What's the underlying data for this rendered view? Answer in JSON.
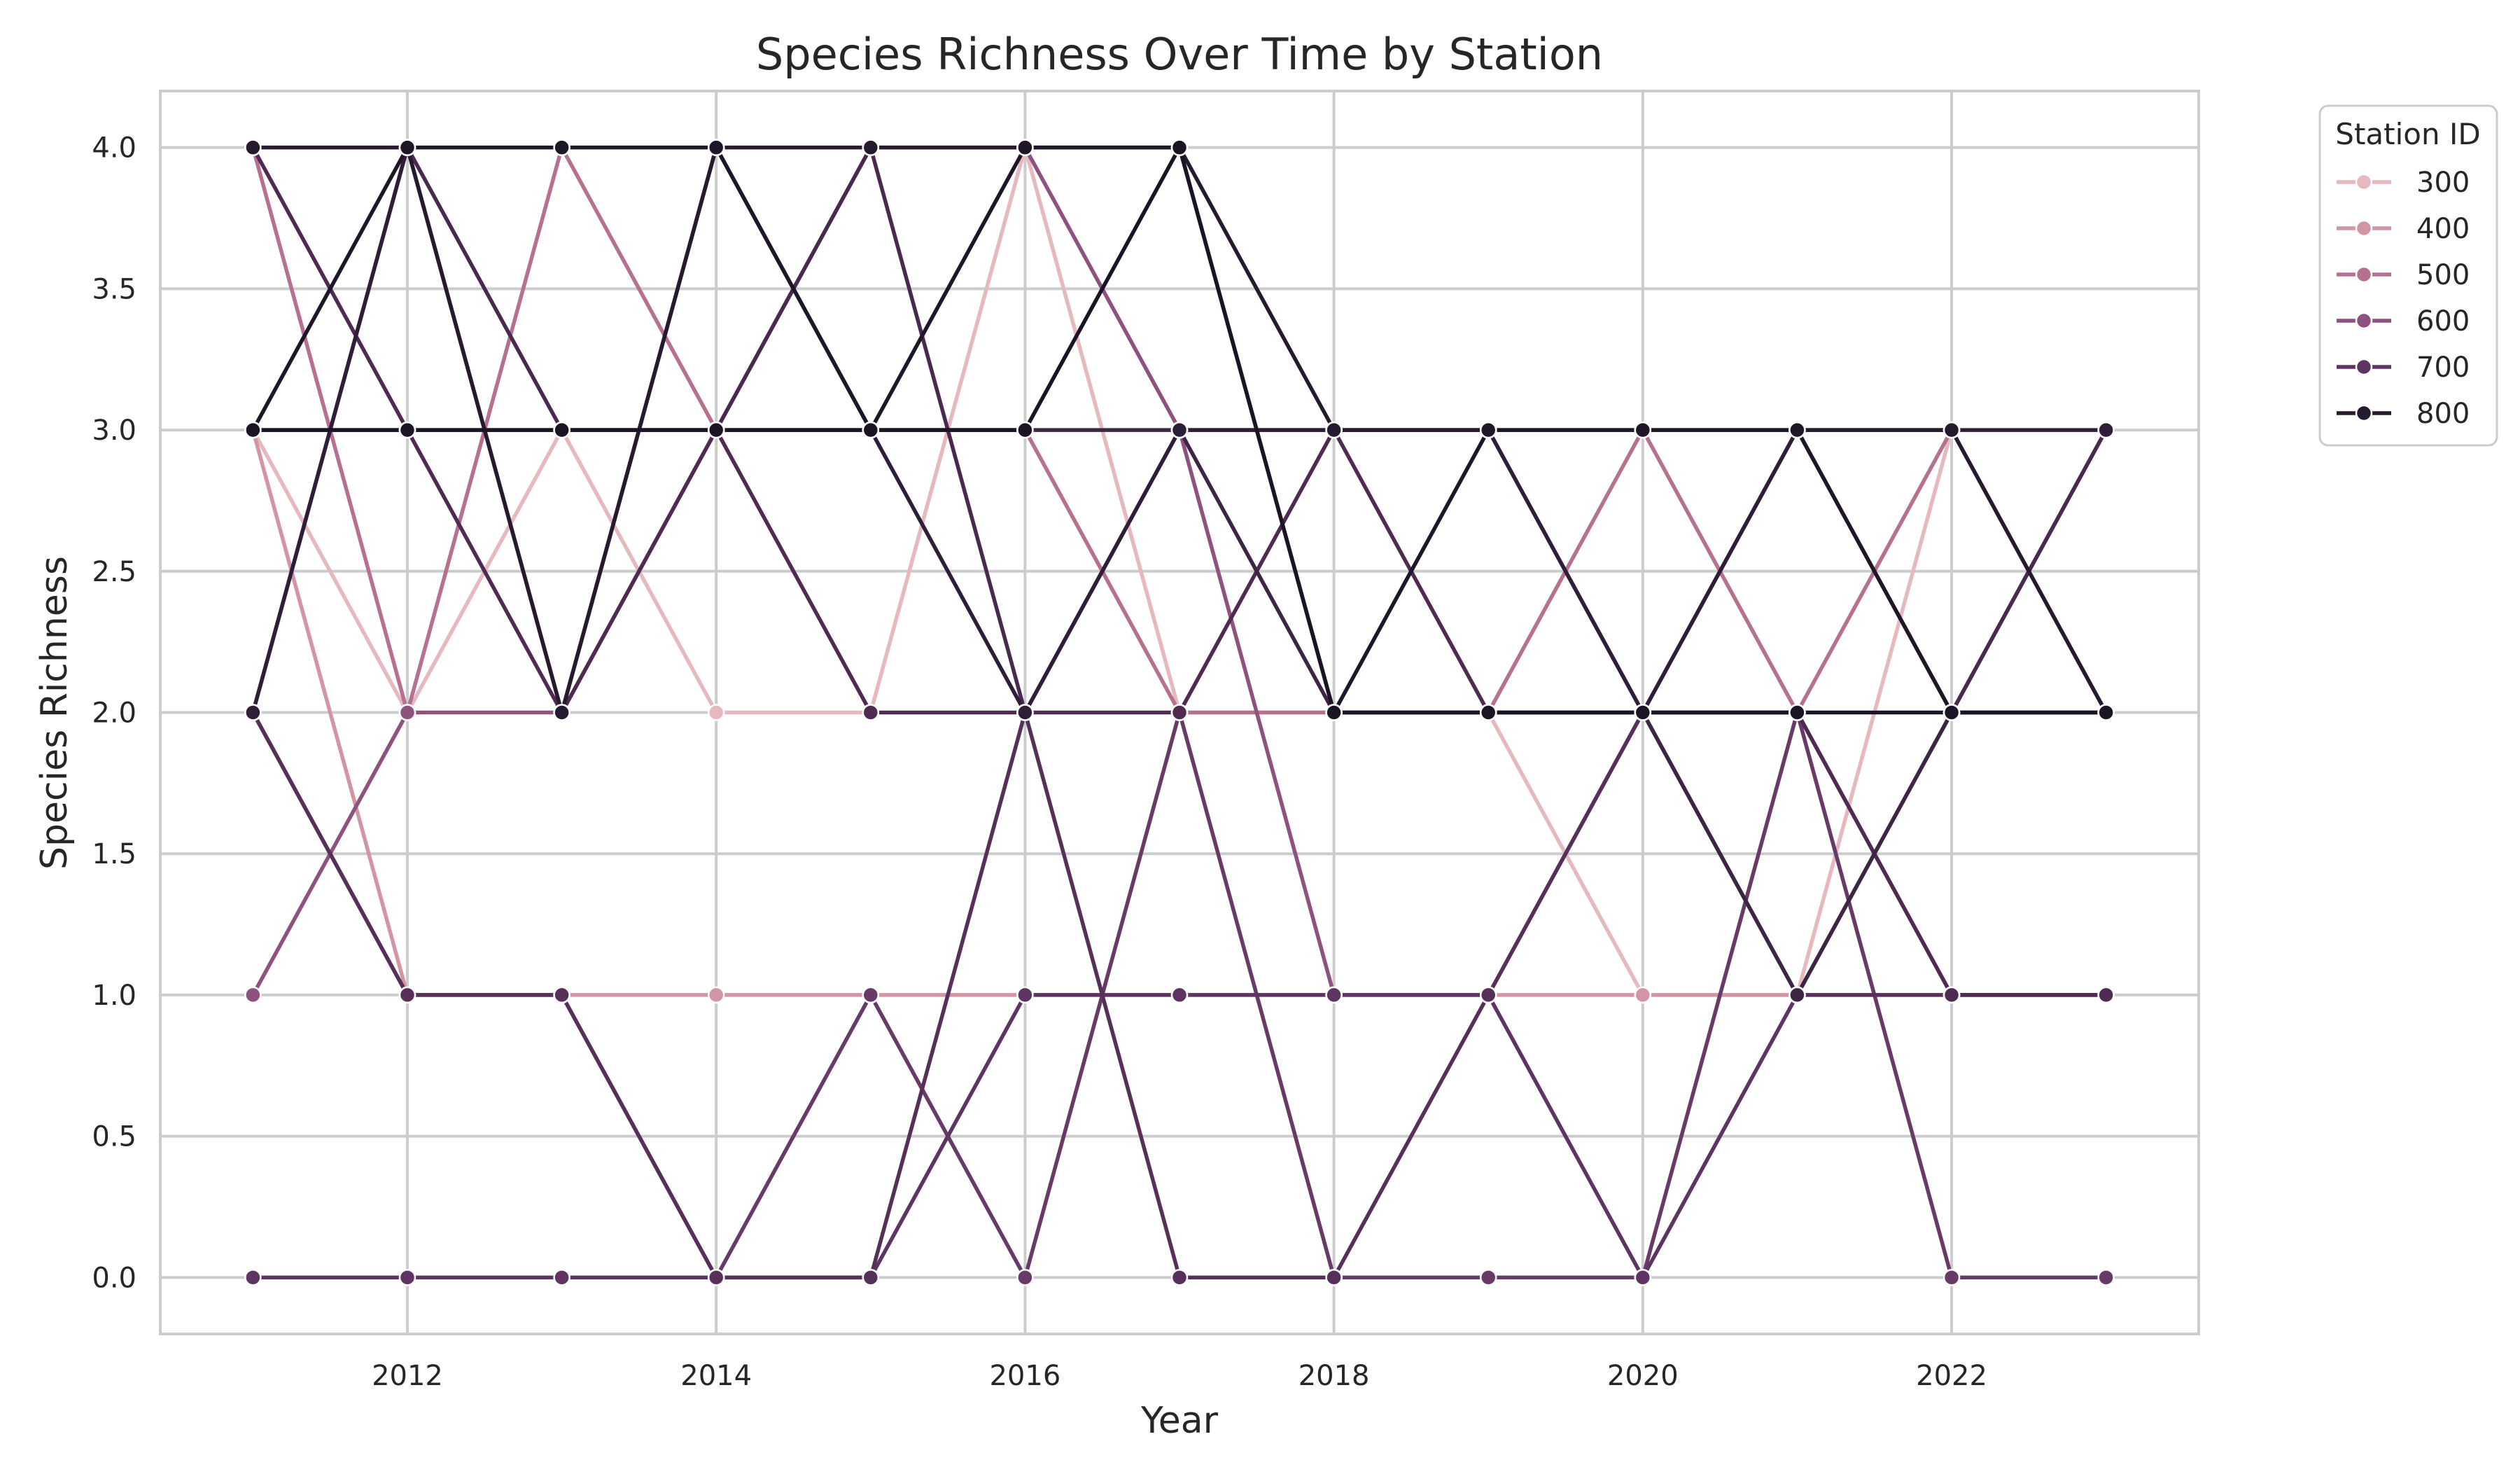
{
  "chart_data": {
    "type": "line",
    "title": "Species Richness Over Time by Station",
    "xlabel": "Year",
    "ylabel": "Species Richness",
    "xlim": [
      2010.4,
      2023.6
    ],
    "ylim": [
      -0.2,
      4.2
    ],
    "x_ticks": [
      2012,
      2014,
      2016,
      2018,
      2020,
      2022
    ],
    "y_ticks": [
      0.0,
      0.5,
      1.0,
      1.5,
      2.0,
      2.5,
      3.0,
      3.5,
      4.0
    ],
    "x_tick_labels": [
      "2012",
      "2014",
      "2016",
      "2018",
      "2020",
      "2022"
    ],
    "y_tick_labels": [
      "0.0",
      "0.5",
      "1.0",
      "1.5",
      "2.0",
      "2.5",
      "3.0",
      "3.5",
      "4.0"
    ],
    "grid": true,
    "legend": {
      "title": "Station ID",
      "placement": "outside-top-right"
    },
    "x": [
      2011,
      2012,
      2013,
      2014,
      2015,
      2016,
      2017,
      2018,
      2019,
      2020,
      2021,
      2022,
      2023
    ],
    "series": [
      {
        "name": "300",
        "color": "#e6b9bf",
        "values": [
          3,
          2,
          3,
          2,
          2,
          4,
          2,
          2,
          2,
          1,
          1,
          3,
          2
        ]
      },
      {
        "name": "400",
        "color": "#d295a4",
        "values": [
          3,
          1,
          1,
          1,
          1,
          1,
          1,
          1,
          1,
          1,
          1,
          1,
          1
        ]
      },
      {
        "name": "500",
        "color": "#b5718f",
        "values": [
          4,
          2,
          4,
          3,
          3,
          3,
          2,
          2,
          2,
          3,
          2,
          3,
          2
        ]
      },
      {
        "name": "600",
        "color": "#8f517d",
        "values": [
          1,
          2,
          2,
          3,
          4,
          4,
          3,
          1,
          1,
          2,
          2,
          1,
          1
        ]
      },
      {
        "name": "700",
        "color": "#683a67",
        "values": [
          2,
          1,
          1,
          0,
          1,
          0,
          2,
          0,
          0,
          0,
          2,
          0,
          0
        ]
      },
      {
        "name": "700",
        "color": "#5e3562",
        "values": [
          0,
          0,
          0,
          0,
          0,
          1,
          1,
          1,
          1,
          0,
          1,
          2,
          3
        ]
      },
      {
        "name": "700",
        "color": "#563059",
        "values": [
          2,
          1,
          1,
          0,
          0,
          2,
          0,
          0,
          1,
          2,
          1,
          1,
          1
        ]
      },
      {
        "name": "700",
        "color": "#4f2b52",
        "values": [
          4,
          3,
          2,
          3,
          2,
          2,
          2,
          3,
          2,
          2,
          2,
          1,
          1
        ]
      },
      {
        "name": "700",
        "color": "#482a4f",
        "values": [
          2,
          4,
          3,
          3,
          4,
          2,
          3,
          3,
          3,
          2,
          3,
          2,
          3
        ]
      },
      {
        "name": "800",
        "color": "#3c2643",
        "values": [
          3,
          3,
          3,
          3,
          3,
          3,
          3,
          2,
          2,
          2,
          1,
          2,
          2
        ]
      },
      {
        "name": "800",
        "color": "#2f1e38",
        "values": [
          2,
          4,
          2,
          4,
          3,
          2,
          3,
          3,
          3,
          2,
          3,
          3,
          3
        ]
      },
      {
        "name": "800",
        "color": "#261a2f",
        "values": [
          4,
          4,
          2,
          4,
          4,
          4,
          4,
          3,
          3,
          3,
          3,
          3,
          2
        ]
      },
      {
        "name": "800",
        "color": "#1f1628",
        "values": [
          3,
          4,
          4,
          4,
          3,
          4,
          4,
          2,
          3,
          3,
          3,
          2,
          2
        ]
      },
      {
        "name": "800",
        "color": "#1b1424",
        "values": [
          3,
          3,
          3,
          3,
          3,
          3,
          4,
          2,
          2,
          2,
          2,
          2,
          2
        ]
      }
    ],
    "legend_items": [
      {
        "name": "300",
        "color": "#e6b9bf"
      },
      {
        "name": "400",
        "color": "#d295a4"
      },
      {
        "name": "500",
        "color": "#b5718f"
      },
      {
        "name": "600",
        "color": "#8f517d"
      },
      {
        "name": "700",
        "color": "#5e3562"
      },
      {
        "name": "800",
        "color": "#261a2f"
      }
    ]
  }
}
